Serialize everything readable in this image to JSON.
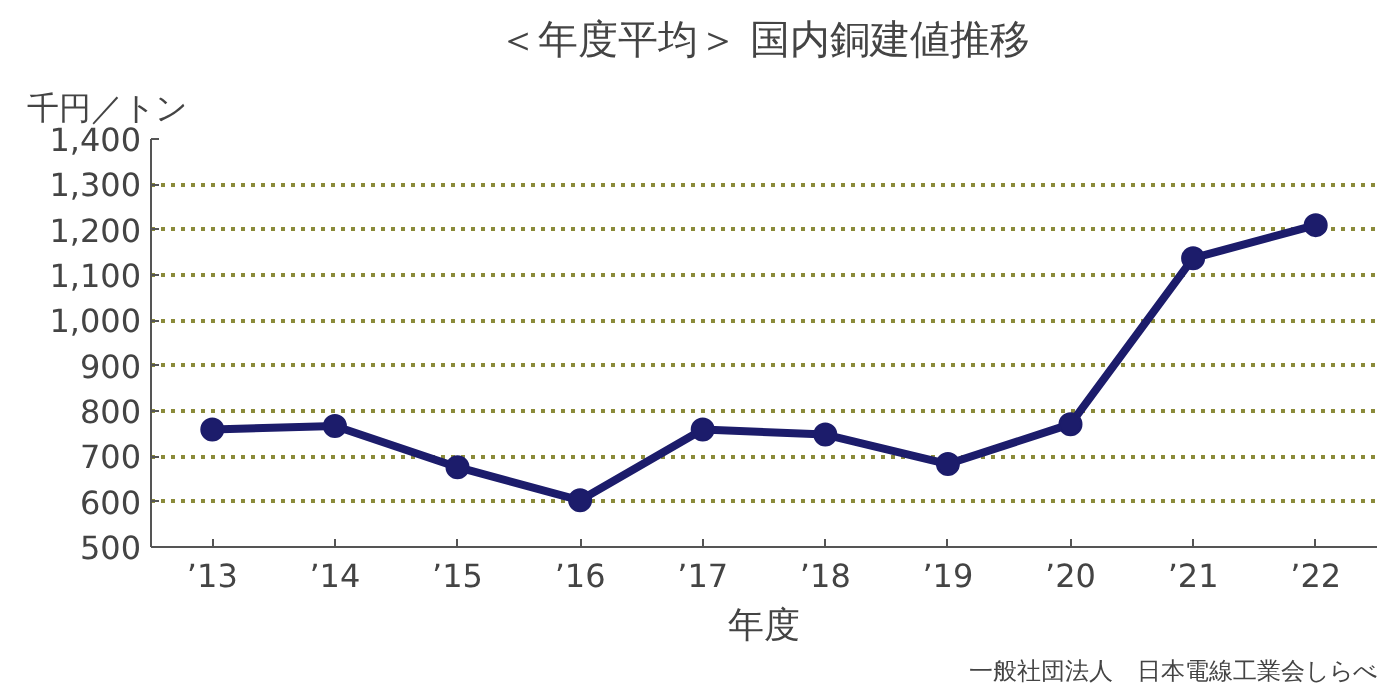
{
  "chart_data": {
    "type": "line",
    "title": "＜年度平均＞ 国内銅建値推移",
    "ylabel": "千円／トン",
    "xlabel": "年度",
    "categories": [
      "’13",
      "’14",
      "’15",
      "’16",
      "’17",
      "’18",
      "’19",
      "’20",
      "’21",
      "’22"
    ],
    "series": [
      {
        "color": "#1c1c6b",
        "values": [
          759,
          767,
          676,
          603,
          759,
          748,
          683,
          771,
          1137,
          1210
        ]
      }
    ],
    "ylim": [
      500,
      1400
    ],
    "yticks": [
      500,
      600,
      700,
      800,
      900,
      {
        "value": 1000,
        "label": "1,000"
      },
      {
        "value": 1100,
        "label": "1,100"
      },
      {
        "value": 1200,
        "label": "1,200"
      },
      {
        "value": 1300,
        "label": "1,300"
      },
      {
        "value": 1400,
        "label": "1,400"
      }
    ],
    "grid": "y",
    "marker": "circle",
    "line_style": "solid",
    "annotations": [
      "一般社団法人　日本電線工業会しらべ"
    ]
  }
}
